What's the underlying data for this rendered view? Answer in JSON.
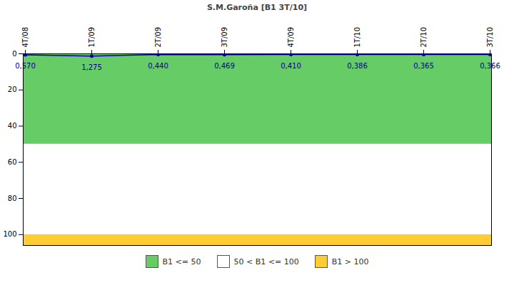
{
  "chart_data": {
    "type": "line",
    "title": "S.M.Garoña [B1 3T/10]",
    "categories": [
      "4T/08",
      "1T/09",
      "2T/09",
      "3T/09",
      "4T/09",
      "1T/10",
      "2T/10",
      "3T/10"
    ],
    "values": [
      0.57,
      1.275,
      0.44,
      0.469,
      0.41,
      0.386,
      0.365,
      0.366
    ],
    "value_labels": [
      "0,570",
      "1,275",
      "0,440",
      "0,469",
      "0,410",
      "0,386",
      "0,365",
      "0,366"
    ],
    "data_labels": true,
    "color": "#000099",
    "marker": "circle",
    "ylim": [
      0,
      106
    ],
    "yticks": [
      0,
      20,
      40,
      60,
      80,
      100
    ],
    "grid": false,
    "bands": [
      {
        "from": 0,
        "to": 50,
        "label": "B1 <= 50",
        "color": "#66cc66"
      },
      {
        "from": 50,
        "to": 100,
        "label": "50 < B1 <= 100",
        "color": "#ffffff"
      },
      {
        "from": 100,
        "to": 106,
        "label": "B1 > 100",
        "color": "#ffcc33"
      }
    ]
  }
}
